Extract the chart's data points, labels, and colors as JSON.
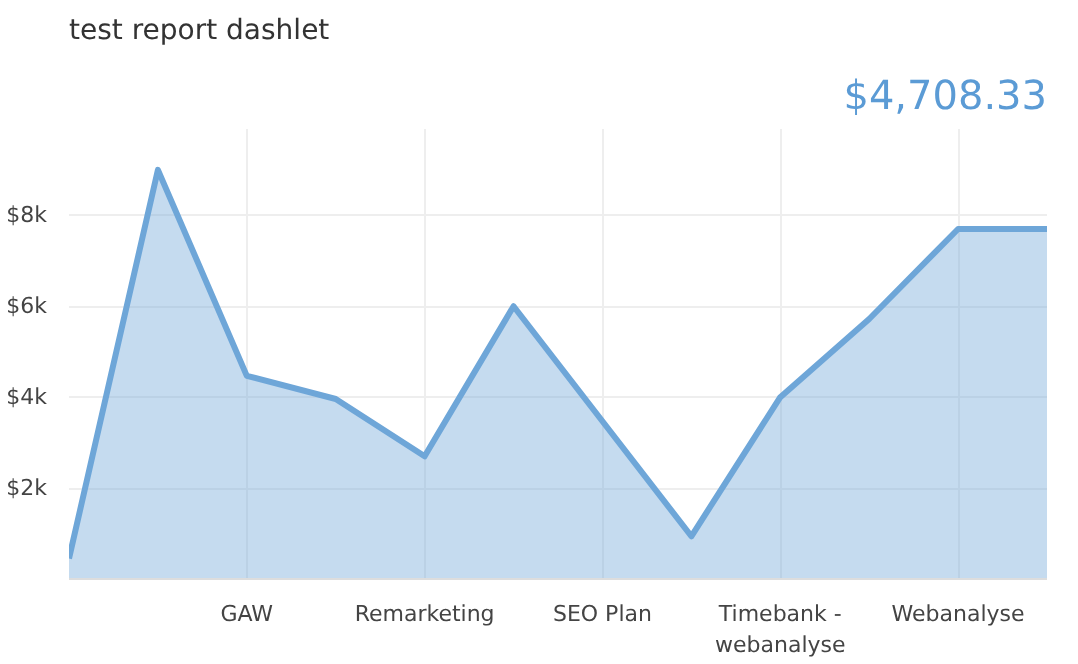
{
  "chart_data": {
    "type": "area",
    "title": "test report dashlet",
    "annotations": [
      "$4,708.33"
    ],
    "categories": [
      null,
      null,
      "GAW",
      null,
      "Remarketing",
      null,
      "SEO Plan",
      null,
      "Timebank -\nwebanalyse",
      null,
      "Webanalyse",
      null
    ],
    "series": [
      {
        "color": "#6ea6d8",
        "values": [
          450,
          9000,
          4470,
          3960,
          2700,
          6000,
          3470,
          940,
          4000,
          5720,
          7700,
          7700
        ]
      }
    ],
    "ylim": [
      0,
      9900
    ],
    "yticks": [
      {
        "value": 2000,
        "label": "$2k"
      },
      {
        "value": 4000,
        "label": "$4k"
      },
      {
        "value": 6000,
        "label": "$6k"
      },
      {
        "value": 8000,
        "label": "$8k"
      }
    ],
    "grid": true,
    "marker": "none",
    "line_style": "solid"
  }
}
